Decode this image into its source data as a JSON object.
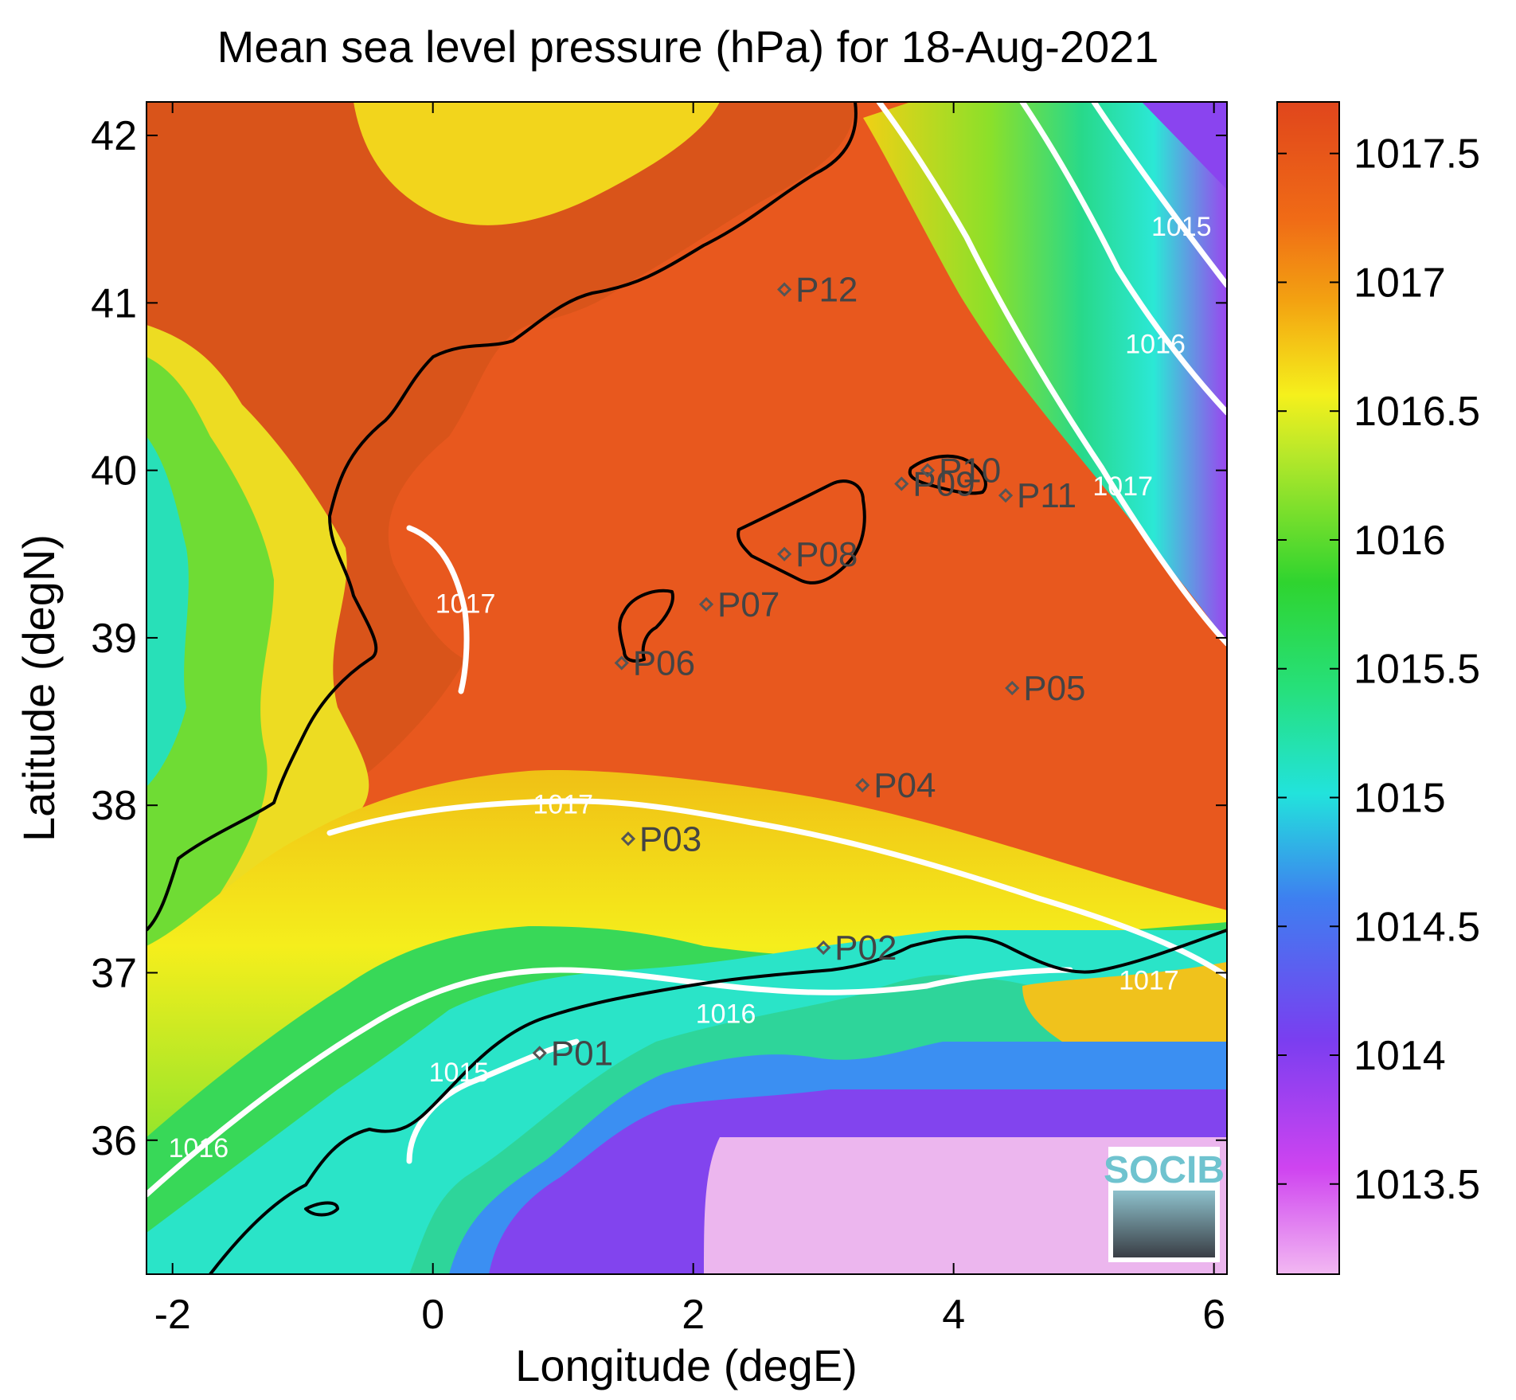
{
  "title": "Mean sea level pressure (hPa) for 18-Aug-2021",
  "xlabel": "Longitude (degE)",
  "ylabel": "Latitude (degN)",
  "logo_text": "SOCIB",
  "colors": {
    "land_high": "#e0521c",
    "sea_high": "#e8561e",
    "contour": "#ffffff",
    "coast": "#000000",
    "station": "#555555"
  },
  "chart_data": {
    "type": "heatmap",
    "title": "Mean sea level pressure (hPa) for 18-Aug-2021",
    "xlabel": "Longitude (degE)",
    "ylabel": "Latitude (degN)",
    "xlim": [
      -2.2,
      6.1
    ],
    "ylim": [
      35.2,
      42.2
    ],
    "x_ticks": [
      -2,
      0,
      2,
      4,
      6
    ],
    "y_ticks": [
      36,
      37,
      38,
      39,
      40,
      41,
      42
    ],
    "colorbar": {
      "range": [
        1013.15,
        1017.7
      ],
      "ticks": [
        1013.5,
        1014,
        1014.5,
        1015,
        1015.5,
        1016,
        1016.5,
        1017,
        1017.5
      ],
      "tick_labels": [
        "1013.5",
        "1014",
        "1014.5",
        "1015",
        "1015.5",
        "1016",
        "1016.5",
        "1017",
        "1017.5"
      ]
    },
    "contour_labels": [
      {
        "text": "1017",
        "lon": 1.0,
        "lat": 37.95
      },
      {
        "text": "1017",
        "lon": 0.25,
        "lat": 39.15
      },
      {
        "text": "1017",
        "lon": 5.3,
        "lat": 39.85
      },
      {
        "text": "1017",
        "lon": 5.5,
        "lat": 36.9
      },
      {
        "text": "1016",
        "lon": 5.55,
        "lat": 40.7
      },
      {
        "text": "1016",
        "lon": 2.25,
        "lat": 36.7
      },
      {
        "text": "1016",
        "lon": -1.8,
        "lat": 35.9
      },
      {
        "text": "1015",
        "lon": 5.75,
        "lat": 41.4
      },
      {
        "text": "1015",
        "lon": 0.2,
        "lat": 36.35
      }
    ],
    "stations": [
      {
        "name": "P01",
        "lon": 0.82,
        "lat": 36.52
      },
      {
        "name": "P02",
        "lon": 3.0,
        "lat": 37.15
      },
      {
        "name": "P03",
        "lon": 1.5,
        "lat": 37.8
      },
      {
        "name": "P04",
        "lon": 3.3,
        "lat": 38.12
      },
      {
        "name": "P05",
        "lon": 4.45,
        "lat": 38.7
      },
      {
        "name": "P06",
        "lon": 1.45,
        "lat": 38.85
      },
      {
        "name": "P07",
        "lon": 2.1,
        "lat": 39.2
      },
      {
        "name": "P08",
        "lon": 2.7,
        "lat": 39.5
      },
      {
        "name": "P09",
        "lon": 3.6,
        "lat": 39.92
      },
      {
        "name": "P10",
        "lon": 3.8,
        "lat": 40.0
      },
      {
        "name": "P11",
        "lon": 4.4,
        "lat": 39.85
      },
      {
        "name": "P12",
        "lon": 2.7,
        "lat": 41.08
      }
    ]
  }
}
